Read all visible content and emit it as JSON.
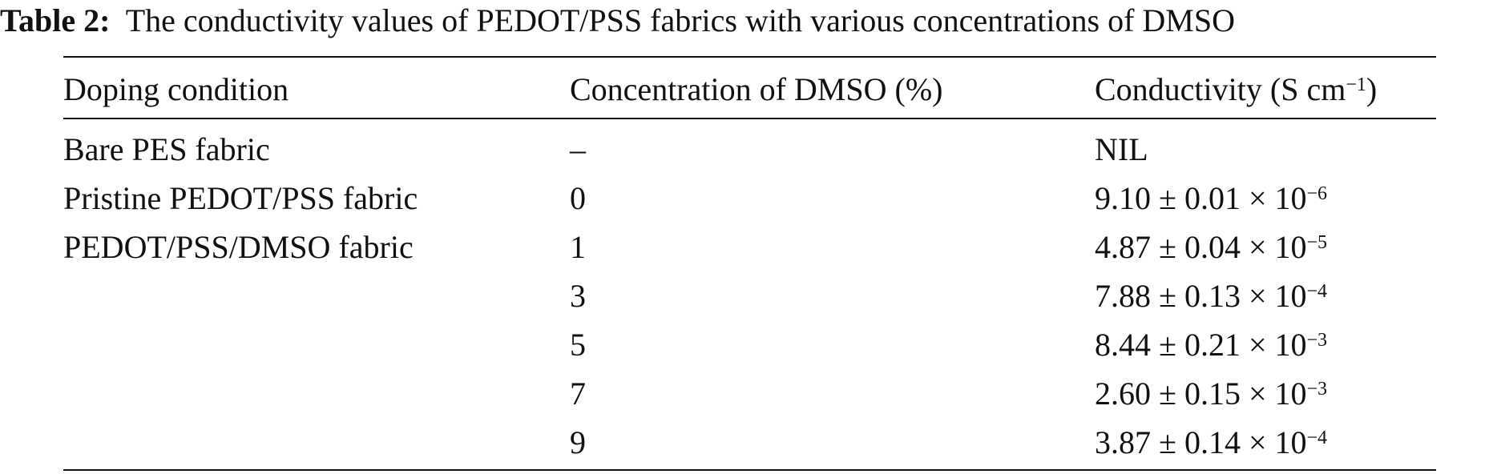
{
  "caption": {
    "label": "Table 2:",
    "text": "The conductivity values of PEDOT/PSS fabrics with various concentrations of DMSO"
  },
  "table": {
    "header": {
      "condition": "Doping condition",
      "concentration": "Concentration of DMSO (%)",
      "conductivity": {
        "before": "Conductivity (S cm",
        "sup": "−1",
        "after": ")"
      }
    },
    "rows": [
      {
        "condition": "Bare PES fabric",
        "concentration": "–",
        "conductivity": {
          "text": "NIL"
        }
      },
      {
        "condition": "Pristine PEDOT/PSS fabric",
        "concentration": 0,
        "conductivity": {
          "mantissa": "9.10 ± 0.01 × 10",
          "exponent": "−6"
        }
      },
      {
        "condition": "PEDOT/PSS/DMSO fabric",
        "concentration": 1,
        "conductivity": {
          "mantissa": "4.87 ± 0.04 × 10",
          "exponent": "−5"
        }
      },
      {
        "concentration": 3,
        "conductivity": {
          "mantissa": "7.88 ± 0.13 × 10",
          "exponent": "−4"
        }
      },
      {
        "concentration": 5,
        "conductivity": {
          "mantissa": "8.44 ± 0.21 × 10",
          "exponent": "−3"
        }
      },
      {
        "concentration": 7,
        "conductivity": {
          "mantissa": "2.60 ± 0.15 × 10",
          "exponent": "−3"
        }
      },
      {
        "concentration": 9,
        "conductivity": {
          "mantissa": "3.87 ± 0.14 × 10",
          "exponent": "−4"
        }
      }
    ]
  }
}
